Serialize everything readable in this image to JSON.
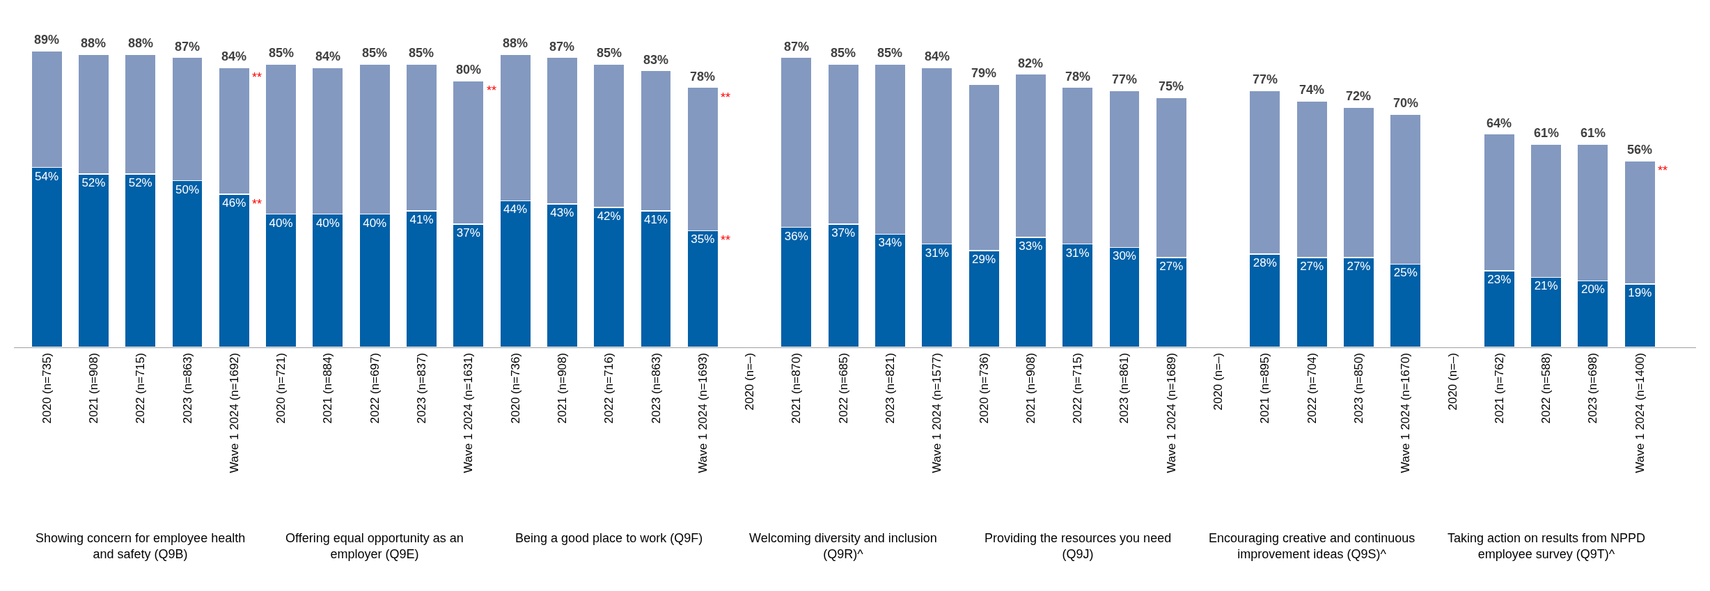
{
  "chart_data": {
    "type": "bar",
    "stacked": true,
    "categories": [
      "2020 (n=735)",
      "2021 (n=908)",
      "2022 (n=715)",
      "2023 (n=863)",
      "Wave 1 2024 (n=1692)",
      "2020 (n=721)",
      "2021 (n=884)",
      "2022 (n=697)",
      "2023 (n=837)",
      "Wave 1 2024 (n=1631)",
      "2020 (n=736)",
      "2021 (n=908)",
      "2022 (n=716)",
      "2023 (n=863)",
      "Wave 1 2024 (n=1693)",
      "2020 (n=–)",
      "2021 (n=870)",
      "2022 (n=685)",
      "2023 (n=821)",
      "Wave 1 2024 (n=1577)",
      "2020 (n=736)",
      "2021 (n=908)",
      "2022 (n=715)",
      "2023 (n=861)",
      "Wave 1 2024 (n=1689)",
      "2020 (n=–)",
      "2021 (n=895)",
      "2022 (n=704)",
      "2023 (n=850)",
      "Wave 1 2024 (n=1670)",
      "2020 (n=–)",
      "2021 (n=762)",
      "2022 (n=588)",
      "2023 (n=698)",
      "Wave 1 2024 (n=1400)"
    ],
    "series": [
      {
        "color": "#0060a8",
        "values": [
          54,
          52,
          52,
          50,
          46,
          40,
          40,
          40,
          41,
          37,
          44,
          43,
          42,
          41,
          35,
          null,
          36,
          37,
          34,
          31,
          29,
          33,
          31,
          30,
          27,
          null,
          28,
          27,
          27,
          25,
          null,
          23,
          21,
          20,
          19
        ],
        "value_labels": [
          "54%",
          "52%",
          "52%",
          "50%",
          "46%",
          "40%",
          "40%",
          "40%",
          "41%",
          "37%",
          "44%",
          "43%",
          "42%",
          "41%",
          "35%",
          null,
          "36%",
          "37%",
          "34%",
          "31%",
          "29%",
          "33%",
          "31%",
          "30%",
          "27%",
          null,
          "28%",
          "27%",
          "27%",
          "25%",
          null,
          "23%",
          "21%",
          "20%",
          "19%"
        ]
      },
      {
        "color": "#8499c0",
        "values": [
          35,
          36,
          36,
          37,
          38,
          45,
          44,
          45,
          44,
          43,
          44,
          44,
          43,
          42,
          43,
          null,
          51,
          48,
          51,
          53,
          50,
          49,
          47,
          47,
          48,
          null,
          49,
          47,
          45,
          45,
          null,
          41,
          40,
          41,
          37
        ]
      }
    ],
    "totals": [
      "89%",
      "88%",
      "88%",
      "87%",
      "84%",
      "85%",
      "84%",
      "85%",
      "85%",
      "80%",
      "88%",
      "87%",
      "85%",
      "83%",
      "78%",
      null,
      "87%",
      "85%",
      "85%",
      "84%",
      "79%",
      "82%",
      "78%",
      "77%",
      "75%",
      null,
      "77%",
      "74%",
      "72%",
      "70%",
      null,
      "64%",
      "61%",
      "61%",
      "56%"
    ],
    "tick_labels": "x",
    "annotations": [
      "Showing concern for employee health and safety (Q9B)",
      "Offering equal opportunity as an employer (Q9E)",
      "Being a good place to work (Q9F)",
      "Welcoming diversity and inclusion (Q9R)^",
      "Providing the resources you need (Q9J)",
      "Encouraging creative and continuous improvement ideas (Q9S)^",
      "Taking action on results from NPPD employee survey (Q9T)^",
      {
        "text": "**",
        "x": "Wave 1 2024 (n=1692)",
        "y": 84
      },
      {
        "text": "**",
        "x": "Wave 1 2024 (n=1692)",
        "y": 46
      },
      {
        "text": "**",
        "x": "Wave 1 2024 (n=1631)",
        "y": 80
      },
      {
        "text": "**",
        "x": "Wave 1 2024 (n=1693)",
        "y": 78
      },
      {
        "text": "**",
        "x": "Wave 1 2024 (n=1693)",
        "y": 35
      },
      {
        "text": "**",
        "x": "Wave 1 2024 (n=1400)",
        "y": 56
      }
    ]
  }
}
